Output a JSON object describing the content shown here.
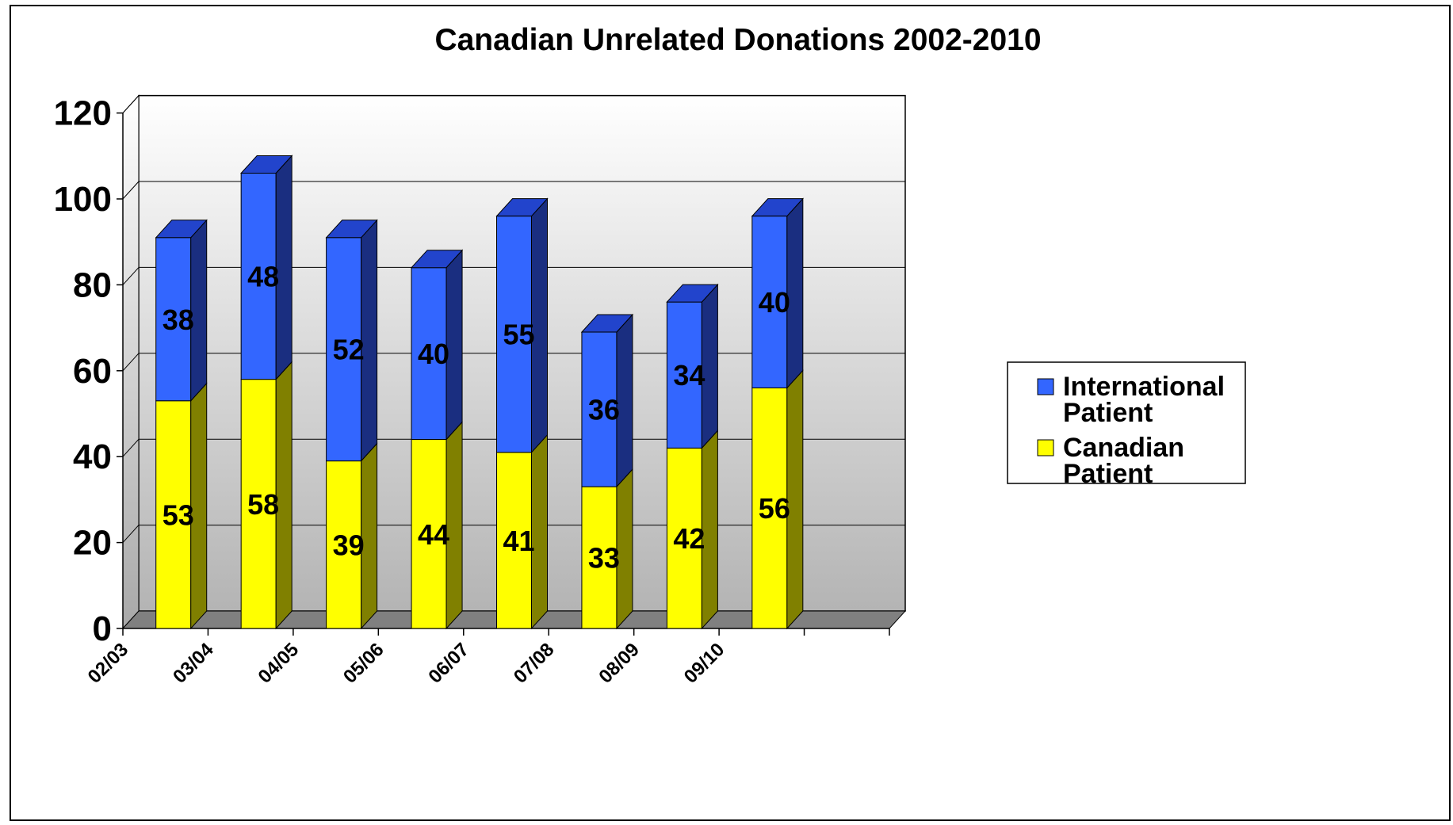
{
  "chart_data": {
    "type": "bar",
    "stacked": true,
    "three_d": true,
    "title": "Canadian Unrelated Donations 2002-2010",
    "categories": [
      "02/03",
      "03/04",
      "04/05",
      "05/06",
      "06/07",
      "07/08",
      "08/09",
      "09/10"
    ],
    "series": [
      {
        "name": "Canadian Patient",
        "values": [
          53,
          58,
          39,
          44,
          41,
          33,
          42,
          56
        ],
        "color": "#ffff00",
        "side_color": "#808000"
      },
      {
        "name": "International Patient",
        "values": [
          38,
          48,
          52,
          40,
          55,
          36,
          34,
          40
        ],
        "color": "#3366ff",
        "side_color": "#1a2e80"
      }
    ],
    "y_ticks": [
      "0",
      "20",
      "40",
      "60",
      "80",
      "100",
      "120"
    ],
    "ylim": [
      0,
      120
    ],
    "grid": true,
    "legend_position": "right",
    "legend": [
      {
        "line1": "International",
        "line2": "Patient",
        "color": "#3366ff"
      },
      {
        "line1": "Canadian",
        "line2": "Patient",
        "color": "#ffff00"
      }
    ],
    "data_labels": true
  }
}
